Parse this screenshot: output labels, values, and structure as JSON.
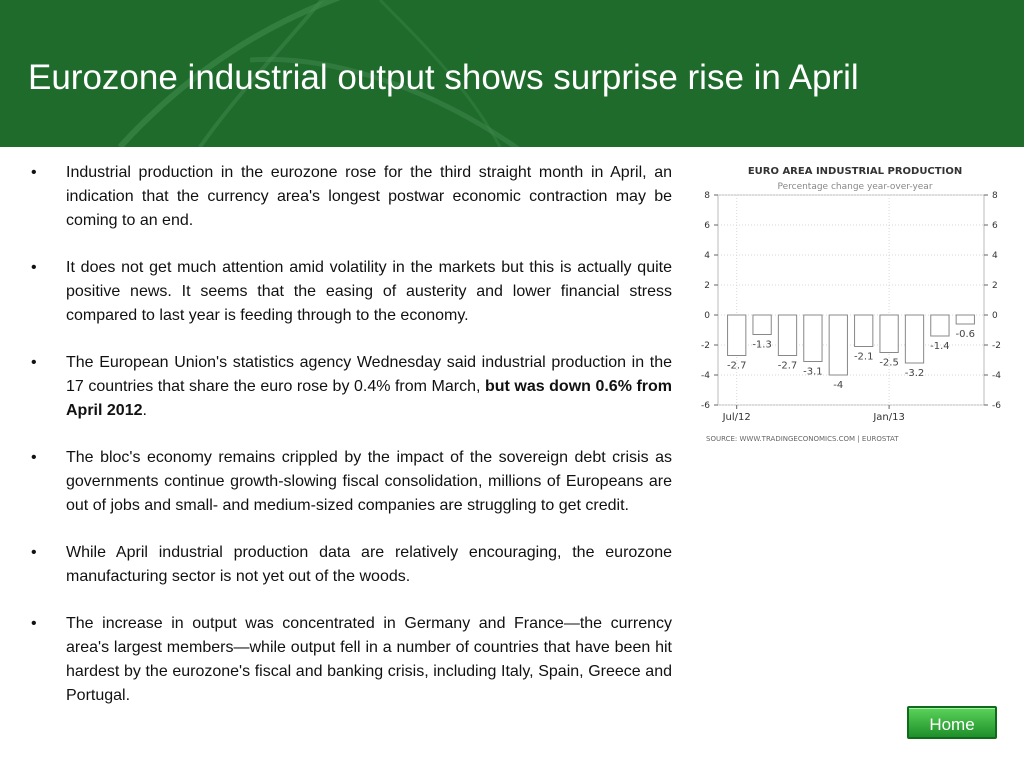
{
  "slide": {
    "title": "Eurozone industrial output shows surprise rise in April"
  },
  "bullets": [
    "Industrial production in the eurozone rose for the third straight month in April, an indication that the currency area's longest postwar economic contraction may be coming to an end.",
    "It does not get much attention amid volatility in the markets but this is actually quite positive news. It seems that the easing of austerity and lower financial stress compared to last year is feeding through to the economy.",
    {
      "text": "The European Union's statistics agency Wednesday said industrial production in the 17 countries that share the euro rose by 0.4% from March, ",
      "bold": "but was down 0.6% from April 2012",
      "suffix": "."
    },
    "The bloc's economy remains crippled by the impact of the sovereign debt crisis as governments continue growth-slowing fiscal consolidation, millions of Europeans are out of jobs and small- and medium-sized companies are struggling to get credit.",
    "While April industrial production data are relatively encouraging, the eurozone manufacturing sector is not yet out of the woods.",
    "The increase in output was concentrated in Germany and France—the currency area's largest members—while output fell in a number of countries that have been hit hardest by the eurozone's fiscal and banking crisis, including Italy, Spain, Greece and Portugal."
  ],
  "home_button": {
    "label": "Home"
  },
  "colors": {
    "header_green": "#1e6b2c",
    "button_green": "#2fa83a",
    "bar_fill": "#ffffff",
    "bar_stroke": "#888888"
  },
  "chart_data": {
    "type": "bar",
    "title": "EURO AREA INDUSTRIAL PRODUCTION",
    "subtitle": "Percentage change year-over-year",
    "source": "SOURCE:  WWW.TRADINGECONOMICS.COM  |  EUROSTAT",
    "x_tick_labels": [
      "Jul/12",
      "Jan/13"
    ],
    "x_tick_positions": [
      0,
      6
    ],
    "values": [
      -2.7,
      -1.3,
      -2.7,
      -3.1,
      -4,
      -2.1,
      -2.5,
      -3.2,
      -1.4,
      -0.6
    ],
    "data_labels": [
      "-2.7",
      "-1.3",
      "-2.7",
      "-3.1",
      "-4",
      "-2.1",
      "-2.5",
      "-3.2",
      "-1.4",
      "-0.6"
    ],
    "yticks": [
      8,
      6,
      4,
      2,
      0,
      -2,
      -4,
      -6
    ],
    "ylim": [
      -6,
      8
    ],
    "grid": true,
    "dual_y_axis": true
  }
}
